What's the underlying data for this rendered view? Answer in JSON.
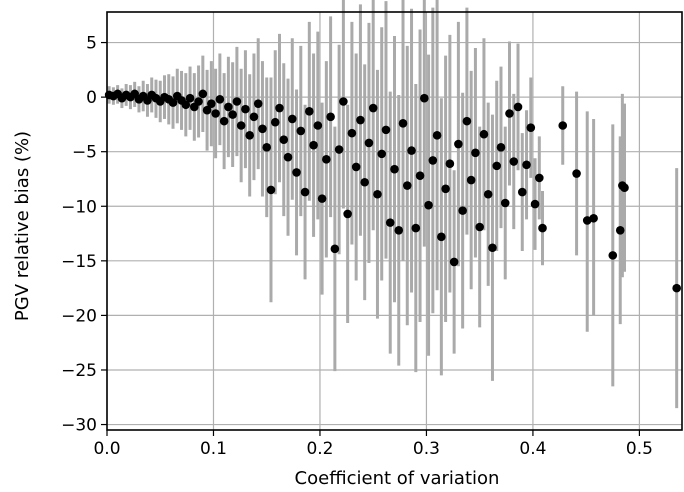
{
  "chart_data": {
    "type": "scatter",
    "title": "",
    "xlabel": "Coefficient of variation",
    "ylabel": "PGV relative bias (%)",
    "xlim": [
      0.0,
      0.54
    ],
    "ylim": [
      -30.5,
      7.8
    ],
    "x_ticks": [
      0.0,
      0.1,
      0.2,
      0.3,
      0.4,
      0.5
    ],
    "x_tick_labels": [
      "0.0",
      "0.1",
      "0.2",
      "0.3",
      "0.4",
      "0.5"
    ],
    "y_ticks": [
      5,
      0,
      -5,
      -10,
      -15,
      -20,
      -25,
      -30
    ],
    "y_tick_labels": [
      "5",
      "0",
      "−5",
      "−10",
      "−15",
      "−20",
      "−25",
      "−30"
    ],
    "grid": true,
    "legend": "none",
    "colors": {
      "points": "#000000",
      "error_bars": "#aaaaaa",
      "grid": "#b0b0b0"
    },
    "series": [
      {
        "marker": "circle",
        "error_bars": "vertical",
        "points": [
          {
            "x": 0.002,
            "y": 0.2,
            "lo": -0.6,
            "hi": 1.0
          },
          {
            "x": 0.006,
            "y": 0.1,
            "lo": -0.7,
            "hi": 0.9
          },
          {
            "x": 0.01,
            "y": 0.3,
            "lo": -0.6,
            "hi": 1.1
          },
          {
            "x": 0.014,
            "y": -0.1,
            "lo": -1.0,
            "hi": 0.8
          },
          {
            "x": 0.018,
            "y": 0.2,
            "lo": -0.8,
            "hi": 1.2
          },
          {
            "x": 0.022,
            "y": 0.0,
            "lo": -1.1,
            "hi": 1.1
          },
          {
            "x": 0.026,
            "y": 0.3,
            "lo": -0.9,
            "hi": 1.4
          },
          {
            "x": 0.03,
            "y": -0.2,
            "lo": -1.4,
            "hi": 1.0
          },
          {
            "x": 0.034,
            "y": 0.1,
            "lo": -1.3,
            "hi": 1.5
          },
          {
            "x": 0.038,
            "y": -0.3,
            "lo": -1.8,
            "hi": 1.2
          },
          {
            "x": 0.042,
            "y": 0.2,
            "lo": -1.4,
            "hi": 1.8
          },
          {
            "x": 0.046,
            "y": -0.1,
            "lo": -1.9,
            "hi": 1.6
          },
          {
            "x": 0.05,
            "y": -0.4,
            "lo": -2.3,
            "hi": 1.5
          },
          {
            "x": 0.054,
            "y": 0.0,
            "lo": -2.0,
            "hi": 2.0
          },
          {
            "x": 0.058,
            "y": -0.2,
            "lo": -2.5,
            "hi": 2.1
          },
          {
            "x": 0.062,
            "y": -0.5,
            "lo": -2.9,
            "hi": 1.9
          },
          {
            "x": 0.066,
            "y": 0.1,
            "lo": -2.4,
            "hi": 2.6
          },
          {
            "x": 0.07,
            "y": -0.3,
            "lo": -3.0,
            "hi": 2.4
          },
          {
            "x": 0.074,
            "y": -0.7,
            "lo": -3.6,
            "hi": 2.2
          },
          {
            "x": 0.078,
            "y": -0.1,
            "lo": -3.0,
            "hi": 2.8
          },
          {
            "x": 0.082,
            "y": -0.9,
            "lo": -4.0,
            "hi": 2.2
          },
          {
            "x": 0.086,
            "y": -0.4,
            "lo": -3.7,
            "hi": 2.9
          },
          {
            "x": 0.09,
            "y": 0.3,
            "lo": -3.2,
            "hi": 3.8
          },
          {
            "x": 0.094,
            "y": -1.2,
            "lo": -4.9,
            "hi": 2.5
          },
          {
            "x": 0.098,
            "y": -0.6,
            "lo": -4.5,
            "hi": 3.3
          },
          {
            "x": 0.102,
            "y": -1.5,
            "lo": -5.6,
            "hi": 2.6
          },
          {
            "x": 0.106,
            "y": -0.2,
            "lo": -4.4,
            "hi": 4.0
          },
          {
            "x": 0.11,
            "y": -2.2,
            "lo": -6.6,
            "hi": 2.2
          },
          {
            "x": 0.114,
            "y": -0.9,
            "lo": -5.5,
            "hi": 3.7
          },
          {
            "x": 0.118,
            "y": -1.6,
            "lo": -6.4,
            "hi": 3.2
          },
          {
            "x": 0.122,
            "y": -0.4,
            "lo": -5.4,
            "hi": 4.6
          },
          {
            "x": 0.126,
            "y": -2.6,
            "lo": -7.8,
            "hi": 2.6
          },
          {
            "x": 0.13,
            "y": -1.1,
            "lo": -6.5,
            "hi": 4.3
          },
          {
            "x": 0.134,
            "y": -3.5,
            "lo": -9.1,
            "hi": 2.1
          },
          {
            "x": 0.138,
            "y": -1.8,
            "lo": -7.6,
            "hi": 4.0
          },
          {
            "x": 0.142,
            "y": -0.6,
            "lo": -6.6,
            "hi": 5.4
          },
          {
            "x": 0.146,
            "y": -2.9,
            "lo": -9.1,
            "hi": 3.3
          },
          {
            "x": 0.15,
            "y": -4.6,
            "lo": -11.0,
            "hi": 1.8
          },
          {
            "x": 0.154,
            "y": -8.5,
            "lo": -18.8,
            "hi": 1.8
          },
          {
            "x": 0.158,
            "y": -2.3,
            "lo": -8.9,
            "hi": 4.3
          },
          {
            "x": 0.162,
            "y": -1.0,
            "lo": -7.8,
            "hi": 5.8
          },
          {
            "x": 0.166,
            "y": -3.9,
            "lo": -10.9,
            "hi": 3.1
          },
          {
            "x": 0.17,
            "y": -5.5,
            "lo": -12.7,
            "hi": 1.7
          },
          {
            "x": 0.174,
            "y": -2.0,
            "lo": -9.4,
            "hi": 5.4
          },
          {
            "x": 0.178,
            "y": -6.9,
            "lo": -14.5,
            "hi": 0.7
          },
          {
            "x": 0.182,
            "y": -3.1,
            "lo": -10.9,
            "hi": 4.7
          },
          {
            "x": 0.186,
            "y": -8.7,
            "lo": -16.7,
            "hi": -0.7
          },
          {
            "x": 0.19,
            "y": -1.3,
            "lo": -9.5,
            "hi": 6.9
          },
          {
            "x": 0.194,
            "y": -4.4,
            "lo": -12.8,
            "hi": 4.0
          },
          {
            "x": 0.198,
            "y": -2.6,
            "lo": -11.2,
            "hi": 6.0
          },
          {
            "x": 0.202,
            "y": -9.3,
            "lo": -18.1,
            "hi": -0.5
          },
          {
            "x": 0.206,
            "y": -5.7,
            "lo": -14.7,
            "hi": 3.3
          },
          {
            "x": 0.21,
            "y": -1.8,
            "lo": -11.0,
            "hi": 7.4
          },
          {
            "x": 0.214,
            "y": -13.9,
            "lo": -25.1,
            "hi": -2.7
          },
          {
            "x": 0.218,
            "y": -4.8,
            "lo": -14.4,
            "hi": 4.8
          },
          {
            "x": 0.222,
            "y": -0.4,
            "lo": -10.2,
            "hi": 9.4
          },
          {
            "x": 0.226,
            "y": -10.7,
            "lo": -20.7,
            "hi": -0.7
          },
          {
            "x": 0.23,
            "y": -3.3,
            "lo": -13.5,
            "hi": 6.9
          },
          {
            "x": 0.234,
            "y": -6.4,
            "lo": -16.8,
            "hi": 4.0
          },
          {
            "x": 0.238,
            "y": -2.1,
            "lo": -12.7,
            "hi": 8.5
          },
          {
            "x": 0.242,
            "y": -7.8,
            "lo": -18.6,
            "hi": 3.0
          },
          {
            "x": 0.246,
            "y": -4.2,
            "lo": -15.2,
            "hi": 6.8
          },
          {
            "x": 0.25,
            "y": -1.0,
            "lo": -12.2,
            "hi": 10.2
          },
          {
            "x": 0.254,
            "y": -8.9,
            "lo": -20.3,
            "hi": 2.5
          },
          {
            "x": 0.258,
            "y": -5.2,
            "lo": -16.8,
            "hi": 6.4
          },
          {
            "x": 0.262,
            "y": -3.0,
            "lo": -14.8,
            "hi": 8.8
          },
          {
            "x": 0.266,
            "y": -11.5,
            "lo": -23.5,
            "hi": 0.5
          },
          {
            "x": 0.27,
            "y": -6.6,
            "lo": -18.8,
            "hi": 5.6
          },
          {
            "x": 0.274,
            "y": -12.2,
            "lo": -24.6,
            "hi": 0.2
          },
          {
            "x": 0.278,
            "y": -2.4,
            "lo": -15.0,
            "hi": 10.2
          },
          {
            "x": 0.282,
            "y": -8.1,
            "lo": -20.9,
            "hi": 4.7
          },
          {
            "x": 0.286,
            "y": -4.9,
            "lo": -17.9,
            "hi": 8.1
          },
          {
            "x": 0.29,
            "y": -12.0,
            "lo": -25.2,
            "hi": 1.2
          },
          {
            "x": 0.294,
            "y": -7.2,
            "lo": -20.6,
            "hi": 6.2
          },
          {
            "x": 0.298,
            "y": -0.1,
            "lo": -13.7,
            "hi": 13.5
          },
          {
            "x": 0.302,
            "y": -9.9,
            "lo": -23.7,
            "hi": 3.9
          },
          {
            "x": 0.306,
            "y": -5.8,
            "lo": -19.8,
            "hi": 8.2
          },
          {
            "x": 0.31,
            "y": -3.5,
            "lo": -17.7,
            "hi": 10.7
          },
          {
            "x": 0.314,
            "y": -12.8,
            "lo": -25.5,
            "hi": -0.1
          },
          {
            "x": 0.318,
            "y": -8.4,
            "lo": -20.6,
            "hi": 3.8
          },
          {
            "x": 0.322,
            "y": -6.1,
            "lo": -17.9,
            "hi": 5.7
          },
          {
            "x": 0.326,
            "y": -15.1,
            "lo": -23.5,
            "hi": -6.7
          },
          {
            "x": 0.33,
            "y": -4.3,
            "lo": -15.5,
            "hi": 6.9
          },
          {
            "x": 0.334,
            "y": -10.4,
            "lo": -21.2,
            "hi": 0.4
          },
          {
            "x": 0.338,
            "y": -2.2,
            "lo": -12.6,
            "hi": 8.2
          },
          {
            "x": 0.342,
            "y": -7.6,
            "lo": -17.6,
            "hi": 2.4
          },
          {
            "x": 0.346,
            "y": -5.1,
            "lo": -14.7,
            "hi": 4.5
          },
          {
            "x": 0.35,
            "y": -11.9,
            "lo": -21.1,
            "hi": -2.7
          },
          {
            "x": 0.354,
            "y": -3.4,
            "lo": -12.2,
            "hi": 5.4
          },
          {
            "x": 0.358,
            "y": -8.9,
            "lo": -17.3,
            "hi": -0.5
          },
          {
            "x": 0.362,
            "y": -13.8,
            "lo": -26.0,
            "hi": -1.6
          },
          {
            "x": 0.366,
            "y": -6.3,
            "lo": -14.1,
            "hi": 1.5
          },
          {
            "x": 0.37,
            "y": -4.6,
            "lo": -12.0,
            "hi": 2.8
          },
          {
            "x": 0.374,
            "y": -9.7,
            "lo": -16.7,
            "hi": -2.7
          },
          {
            "x": 0.378,
            "y": -1.5,
            "lo": -8.1,
            "hi": 5.1
          },
          {
            "x": 0.382,
            "y": -5.9,
            "lo": -12.1,
            "hi": 0.3
          },
          {
            "x": 0.386,
            "y": -0.9,
            "lo": -6.7,
            "hi": 4.9
          },
          {
            "x": 0.39,
            "y": -8.7,
            "lo": -14.1,
            "hi": -3.3
          },
          {
            "x": 0.394,
            "y": -6.2,
            "lo": -11.2,
            "hi": -1.2
          },
          {
            "x": 0.398,
            "y": -2.8,
            "lo": -7.4,
            "hi": 1.8
          },
          {
            "x": 0.402,
            "y": -9.8,
            "lo": -14.0,
            "hi": -5.6
          },
          {
            "x": 0.406,
            "y": -7.4,
            "lo": -11.2,
            "hi": -3.6
          },
          {
            "x": 0.409,
            "y": -12.0,
            "lo": -15.4,
            "hi": -8.6
          },
          {
            "x": 0.428,
            "y": -2.6,
            "lo": -6.2,
            "hi": 1.0
          },
          {
            "x": 0.441,
            "y": -7.0,
            "lo": -14.5,
            "hi": 0.5
          },
          {
            "x": 0.451,
            "y": -11.3,
            "lo": -21.5,
            "hi": -1.3
          },
          {
            "x": 0.457,
            "y": -11.1,
            "lo": -20.0,
            "hi": -2.0
          },
          {
            "x": 0.475,
            "y": -14.5,
            "lo": -26.5,
            "hi": -2.5
          },
          {
            "x": 0.482,
            "y": -12.2,
            "lo": -20.8,
            "hi": -3.6
          },
          {
            "x": 0.484,
            "y": -8.1,
            "lo": -16.5,
            "hi": 0.3
          },
          {
            "x": 0.486,
            "y": -8.3,
            "lo": -16.0,
            "hi": -0.6
          },
          {
            "x": 0.535,
            "y": -17.5,
            "lo": -28.5,
            "hi": -6.5
          }
        ]
      }
    ]
  }
}
